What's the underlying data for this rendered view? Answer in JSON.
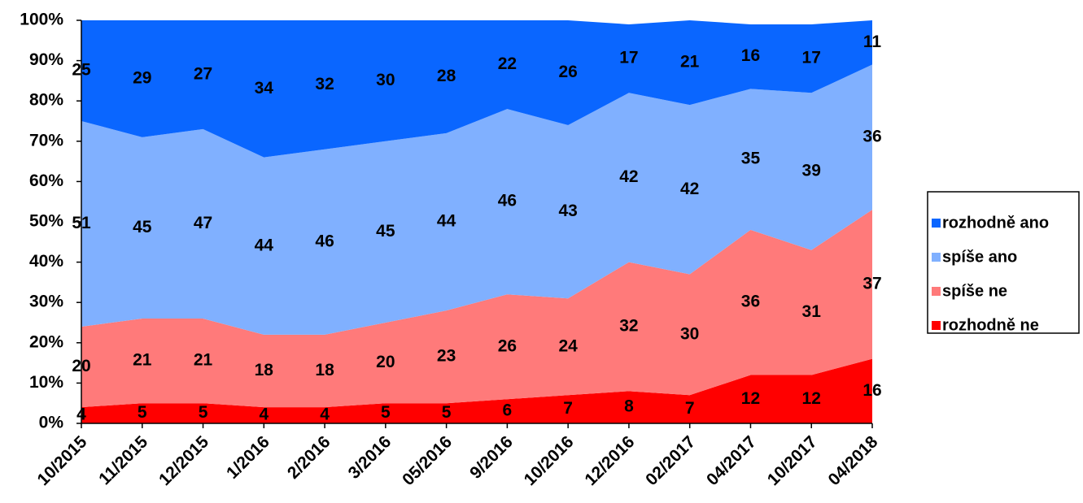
{
  "chart_data": {
    "type": "stacked-area-100",
    "categories": [
      "10/2015",
      "11/2015",
      "12/2015",
      "1/2016",
      "2/2016",
      "3/2016",
      "05/2016",
      "9/2016",
      "10/2016",
      "12/2016",
      "02/2017",
      "04/2017",
      "10/2017",
      "04/2018"
    ],
    "series": [
      {
        "name": "rozhodně ne",
        "color": "#ff0000",
        "values": [
          4,
          5,
          5,
          4,
          4,
          5,
          5,
          6,
          7,
          8,
          7,
          12,
          12,
          16
        ]
      },
      {
        "name": "spíše ne",
        "color": "#ff7a7a",
        "values": [
          20,
          21,
          21,
          18,
          18,
          20,
          23,
          26,
          24,
          32,
          30,
          36,
          31,
          37
        ]
      },
      {
        "name": "spíše ano",
        "color": "#80b0ff",
        "values": [
          51,
          45,
          47,
          44,
          46,
          45,
          44,
          46,
          43,
          42,
          42,
          35,
          39,
          36
        ]
      },
      {
        "name": "rozhodně ano",
        "color": "#0a66ff",
        "values": [
          25,
          29,
          27,
          34,
          32,
          30,
          28,
          22,
          26,
          17,
          21,
          16,
          17,
          11
        ]
      }
    ],
    "ylim": [
      0,
      100
    ],
    "yticks": [
      {
        "value": 0,
        "label": "0%"
      },
      {
        "value": 10,
        "label": "10%"
      },
      {
        "value": 20,
        "label": "20%"
      },
      {
        "value": 30,
        "label": "30%"
      },
      {
        "value": 40,
        "label": "40%"
      },
      {
        "value": 50,
        "label": "50%"
      },
      {
        "value": 60,
        "label": "60%"
      },
      {
        "value": 70,
        "label": "70%"
      },
      {
        "value": 80,
        "label": "80%"
      },
      {
        "value": 90,
        "label": "90%"
      },
      {
        "value": 100,
        "label": "100%"
      }
    ],
    "legend": "right"
  }
}
